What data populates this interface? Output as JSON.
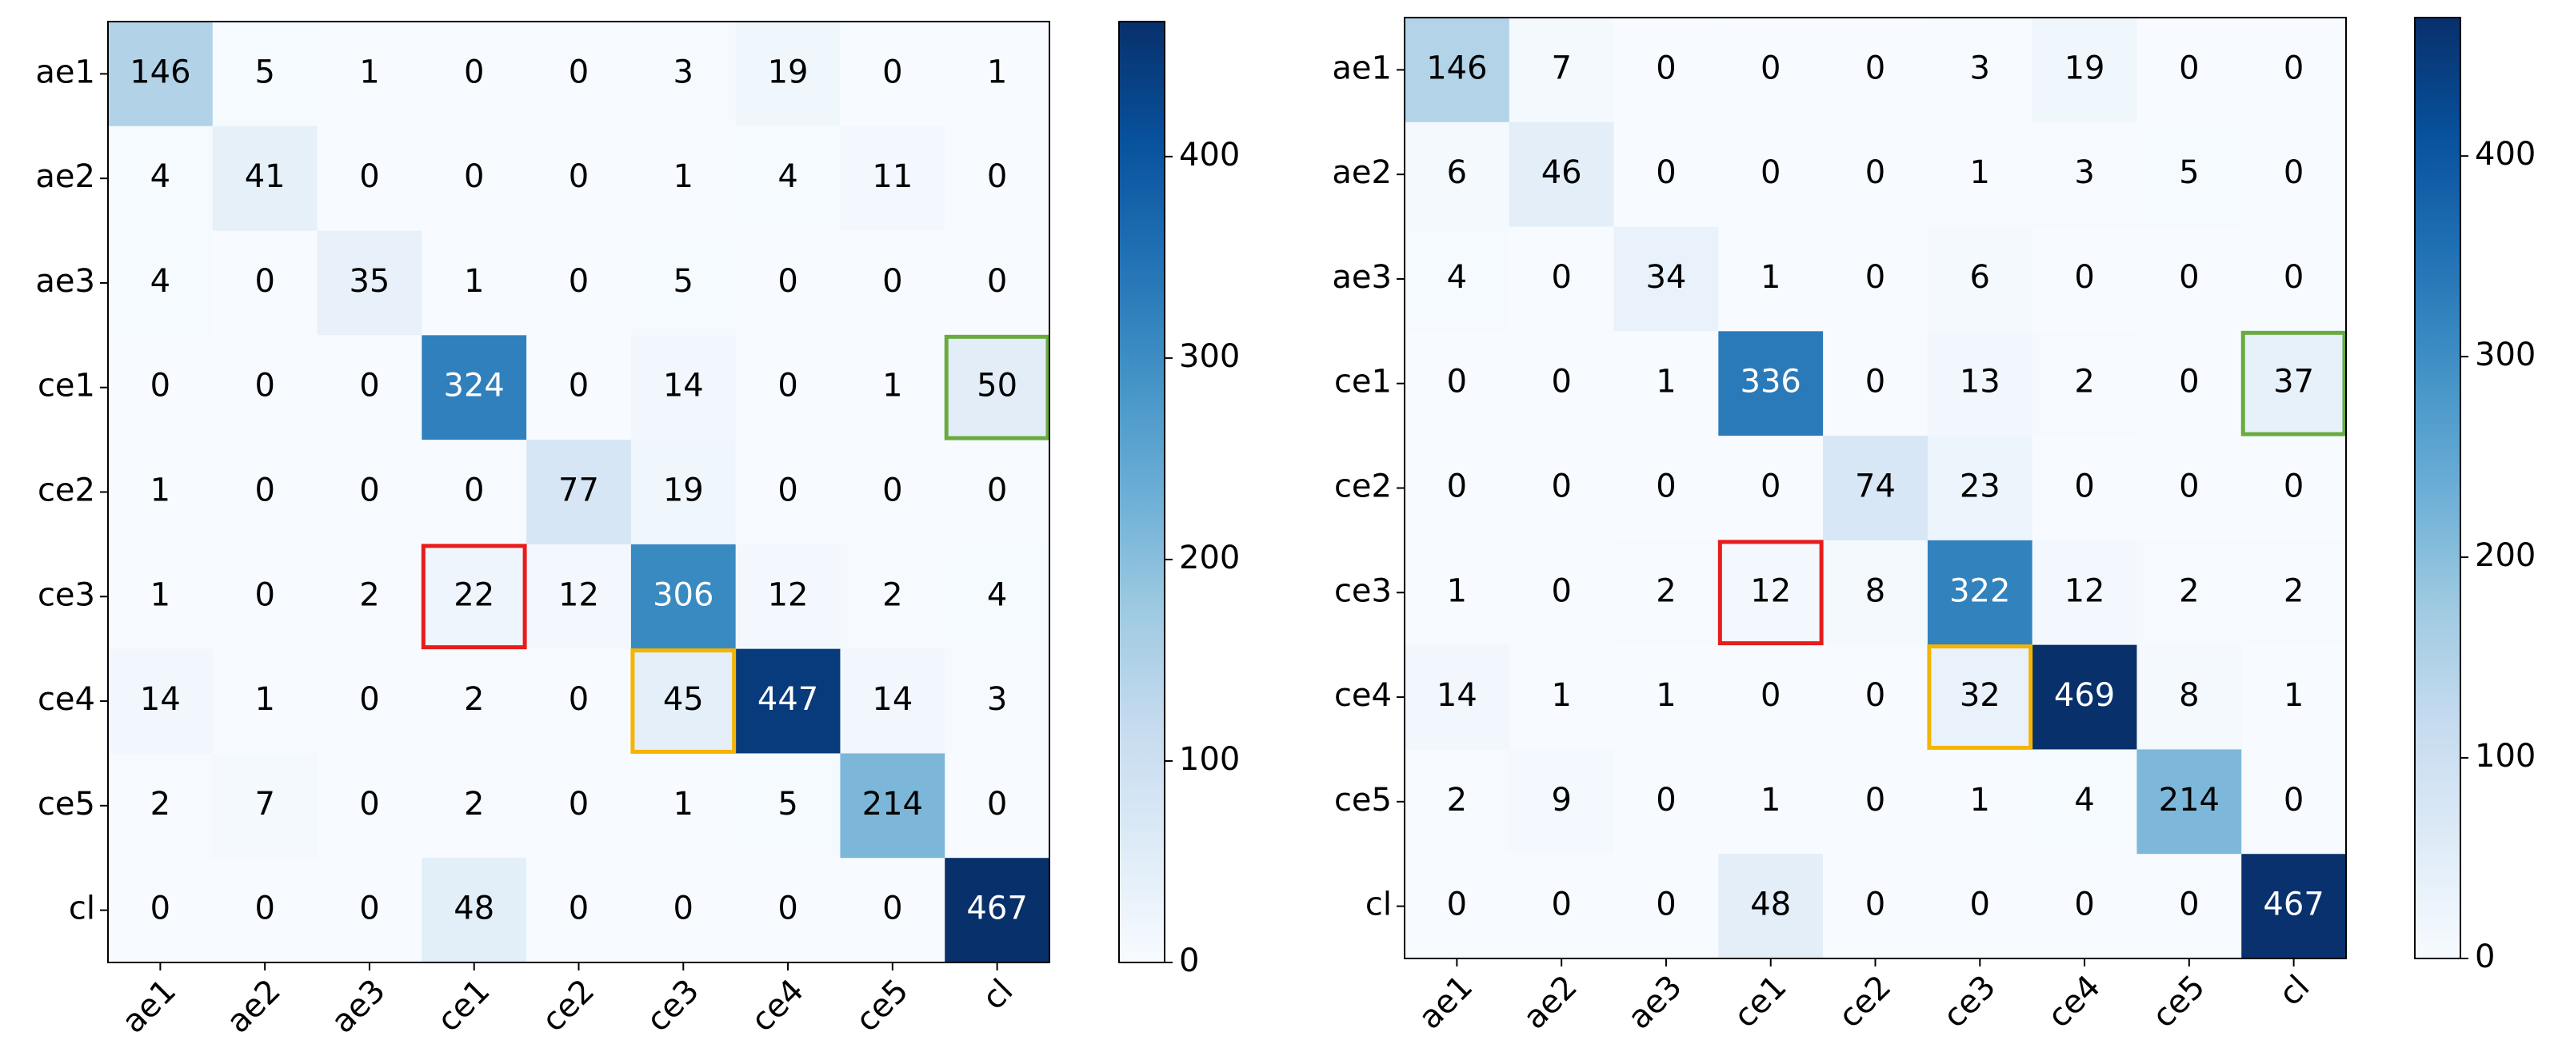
{
  "chart_data": [
    {
      "type": "heatmap",
      "colormap": "Blues",
      "x_categories": [
        "ae1",
        "ae2",
        "ae3",
        "ce1",
        "ce2",
        "ce3",
        "ce4",
        "ce5",
        "cl"
      ],
      "y_categories": [
        "ae1",
        "ae2",
        "ae3",
        "ce1",
        "ce2",
        "ce3",
        "ce4",
        "ce5",
        "cl"
      ],
      "values": [
        [
          146,
          5,
          1,
          0,
          0,
          3,
          19,
          0,
          1
        ],
        [
          4,
          41,
          0,
          0,
          0,
          1,
          4,
          11,
          0
        ],
        [
          4,
          0,
          35,
          1,
          0,
          5,
          0,
          0,
          0
        ],
        [
          0,
          0,
          0,
          324,
          0,
          14,
          0,
          1,
          50
        ],
        [
          1,
          0,
          0,
          0,
          77,
          19,
          0,
          0,
          0
        ],
        [
          1,
          0,
          2,
          22,
          12,
          306,
          12,
          2,
          4
        ],
        [
          14,
          1,
          0,
          2,
          0,
          45,
          447,
          14,
          3
        ],
        [
          2,
          7,
          0,
          2,
          0,
          1,
          5,
          214,
          0
        ],
        [
          0,
          0,
          0,
          48,
          0,
          0,
          0,
          0,
          467
        ]
      ],
      "zlim": [
        0,
        467
      ],
      "zticks": [
        0,
        100,
        200,
        300,
        400
      ]
    },
    {
      "type": "heatmap",
      "colormap": "Blues",
      "x_categories": [
        "ae1",
        "ae2",
        "ae3",
        "ce1",
        "ce2",
        "ce3",
        "ce4",
        "ce5",
        "cl"
      ],
      "y_categories": [
        "ae1",
        "ae2",
        "ae3",
        "ce1",
        "ce2",
        "ce3",
        "ce4",
        "ce5",
        "cl"
      ],
      "values": [
        [
          146,
          7,
          0,
          0,
          0,
          3,
          19,
          0,
          0
        ],
        [
          6,
          46,
          0,
          0,
          0,
          1,
          3,
          5,
          0
        ],
        [
          4,
          0,
          34,
          1,
          0,
          6,
          0,
          0,
          0
        ],
        [
          0,
          0,
          1,
          336,
          0,
          13,
          2,
          0,
          37
        ],
        [
          0,
          0,
          0,
          0,
          74,
          23,
          0,
          0,
          0
        ],
        [
          1,
          0,
          2,
          12,
          8,
          322,
          12,
          2,
          2
        ],
        [
          14,
          1,
          1,
          0,
          0,
          32,
          469,
          8,
          1
        ],
        [
          2,
          9,
          0,
          1,
          0,
          1,
          4,
          214,
          0
        ],
        [
          0,
          0,
          0,
          48,
          0,
          0,
          0,
          0,
          467
        ]
      ],
      "zlim": [
        0,
        469
      ],
      "zticks": [
        0,
        100,
        200,
        300,
        400
      ]
    }
  ]
}
